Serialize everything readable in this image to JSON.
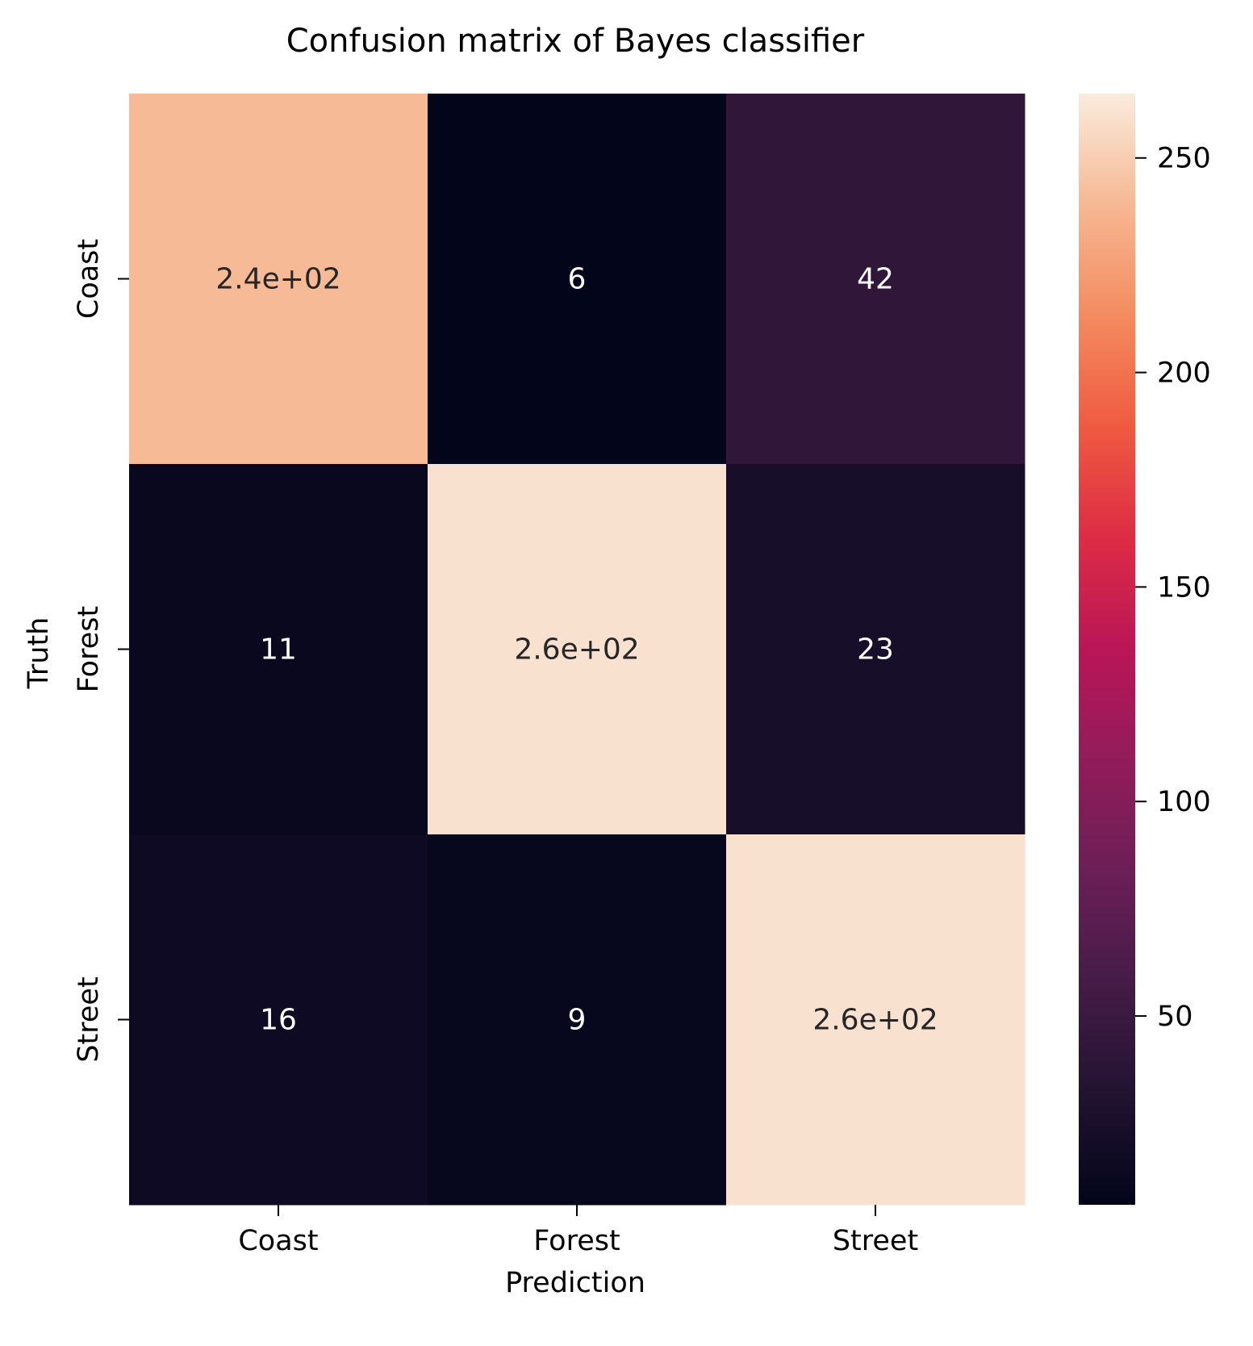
{
  "chart_data": {
    "type": "heatmap",
    "title": "Confusion matrix of Bayes classifier",
    "xlabel": "Prediction",
    "ylabel": "Truth",
    "x_categories": [
      "Coast",
      "Forest",
      "Street"
    ],
    "y_categories": [
      "Coast",
      "Forest",
      "Street"
    ],
    "values": [
      [
        240,
        6,
        42
      ],
      [
        11,
        260,
        23
      ],
      [
        16,
        9,
        260
      ]
    ],
    "annotations": [
      [
        "2.4e+02",
        "6",
        "42"
      ],
      [
        "11",
        "2.6e+02",
        "23"
      ],
      [
        "16",
        "9",
        "2.6e+02"
      ]
    ],
    "colormap": "rocket",
    "colorbar": {
      "range": [
        6,
        265
      ],
      "ticks": [
        50,
        100,
        150,
        200,
        250
      ],
      "tick_labels": [
        "50",
        "100",
        "150",
        "200",
        "250"
      ]
    },
    "annotation_colors": {
      "on_dark": "#ffffff",
      "on_light": "#262626"
    },
    "grid": false
  }
}
